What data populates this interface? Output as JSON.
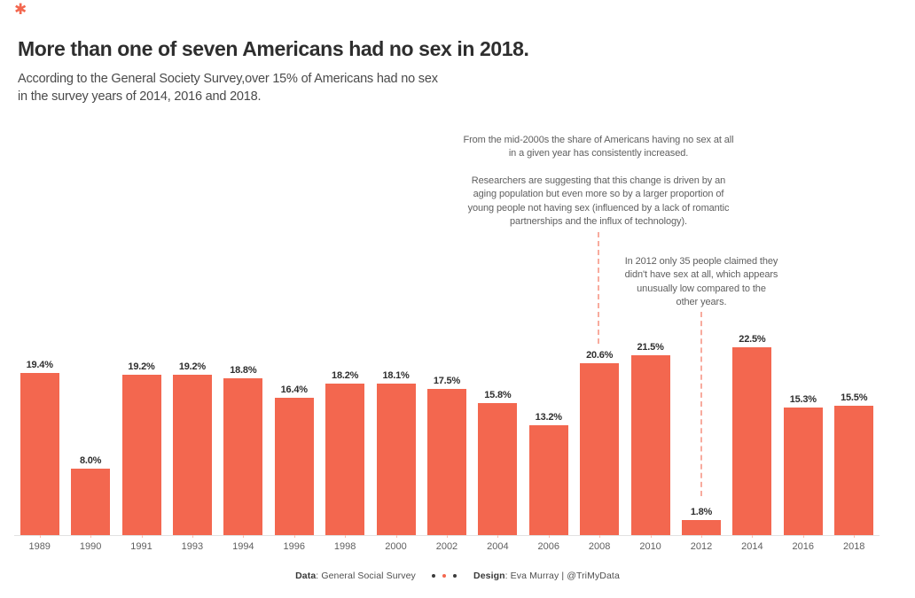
{
  "page": {
    "background": "#ffffff",
    "accent_color": "#f3674f",
    "asterisk_glyph": "✱"
  },
  "header": {
    "title": "More than one of seven Americans had no sex in 2018.",
    "subtitle": "According to the General Society Survey,over 15% of Americans had no sex\nin the survey years of 2014, 2016 and 2018."
  },
  "annotations": {
    "trend": "From the mid-2000s the share of Americans having no sex at all\nin a given year has consistently increased.",
    "researchers": "Researchers are suggesting that this change is driven by an\naging population but even more so by a larger proportion of\nyoung people not having sex (influenced by a lack of romantic\npartnerships and the influx of technology).",
    "year2012": "In 2012 only 35 people claimed they\ndidn't have sex at all, which appears\nunusually low compared to the\nother years."
  },
  "chart_data": {
    "type": "bar",
    "title": "More than one of seven Americans had no sex in 2018.",
    "categories": [
      "1989",
      "1990",
      "1991",
      "1993",
      "1994",
      "1996",
      "1998",
      "2000",
      "2002",
      "2004",
      "2006",
      "2008",
      "2010",
      "2012",
      "2014",
      "2016",
      "2018"
    ],
    "values": [
      19.4,
      8.0,
      19.2,
      19.2,
      18.8,
      16.4,
      18.2,
      18.1,
      17.5,
      15.8,
      13.2,
      20.6,
      21.5,
      1.8,
      22.5,
      15.3,
      15.5
    ],
    "value_labels": [
      "19.4%",
      "8.0%",
      "19.2%",
      "19.2%",
      "18.8%",
      "16.4%",
      "18.2%",
      "18.1%",
      "17.5%",
      "15.8%",
      "13.2%",
      "20.6%",
      "21.5%",
      "1.8%",
      "22.5%",
      "15.3%",
      "15.5%"
    ],
    "bar_color": "#f3674f",
    "xlabel": "",
    "ylabel": "",
    "ylim": [
      0,
      22.5
    ],
    "grid": false,
    "legend": null
  },
  "footer": {
    "data_label": "Data",
    "data_text": ": General Social Survey",
    "separator_dots": [
      "#3b3b3b",
      "#f3674f",
      "#3b3b3b"
    ],
    "design_label": "Design",
    "design_text": ": Eva Murray | @TriMyData"
  }
}
